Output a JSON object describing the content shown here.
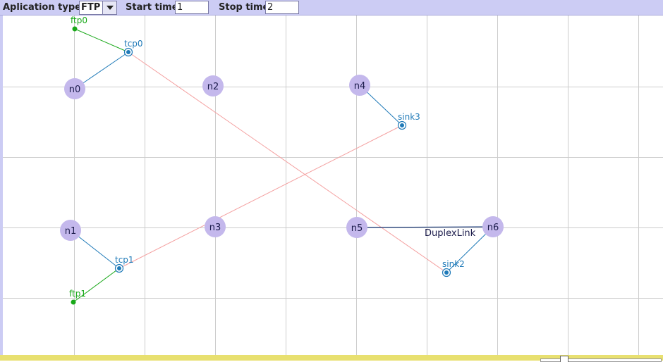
{
  "toolbar": {
    "app_type_label": "Aplication type",
    "app_type_value": "FTP",
    "start_label": "Start time",
    "start_value": "1",
    "stop_label": "Stop time",
    "stop_value": "2"
  },
  "colors": {
    "node": "#c4b8ec",
    "agent": "#1f7ab8",
    "app": "#18a818",
    "flow": "#f4a0a0",
    "toolbar": "#ccccf4",
    "statusbar": "#e8e070"
  },
  "nodes": {
    "n0": "n0",
    "n1": "n1",
    "n2": "n2",
    "n3": "n3",
    "n4": "n4",
    "n5": "n5",
    "n6": "n6"
  },
  "agents": {
    "tcp0": "tcp0",
    "tcp1": "tcp1",
    "sink2": "sink2",
    "sink3": "sink3"
  },
  "apps": {
    "ftp0": "ftp0",
    "ftp1": "ftp1"
  },
  "links": {
    "n5_n6": "DuplexLink"
  }
}
